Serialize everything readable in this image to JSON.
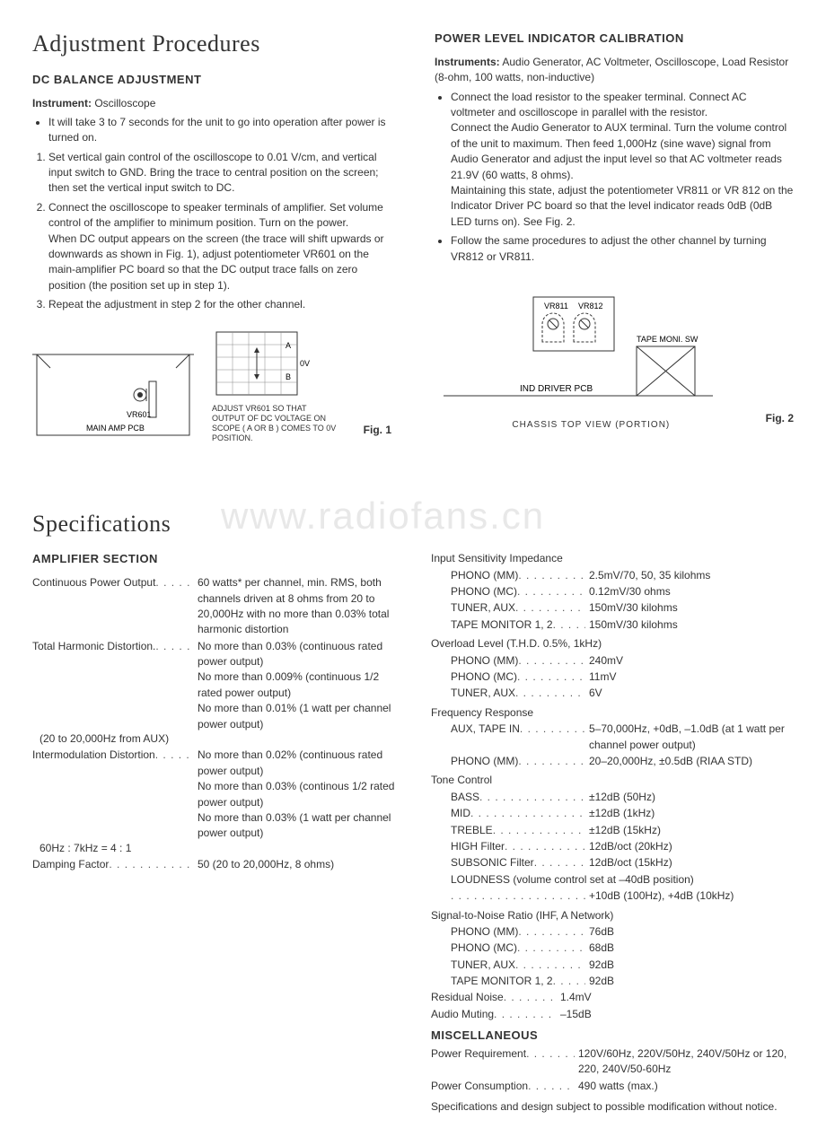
{
  "top": {
    "title": "Adjustment Procedures",
    "dc": {
      "heading": "DC BALANCE ADJUSTMENT",
      "instrument_label": "Instrument:",
      "instrument_value": "Oscilloscope",
      "bullet": "It will take 3 to 7 seconds for the unit to go into operation after power is turned on.",
      "steps": [
        "Set vertical gain control of the oscilloscope to 0.01 V/cm, and vertical input switch to GND. Bring the trace to central position on the screen; then set the vertical input switch to DC.",
        "Connect the oscilloscope to speaker terminals of amplifier. Set volume control of the amplifier to minimum position. Turn on the power.\nWhen DC output appears on the screen (the trace will shift upwards or downwards as shown in Fig. 1), adjust potentiometer VR601 on the main-amplifier PC board so that the DC output trace falls on zero position (the position set up in step 1).",
        "Repeat the adjustment in step 2 for the other channel."
      ]
    },
    "power": {
      "heading": "POWER LEVEL INDICATOR CALIBRATION",
      "instrument_label": "Instruments:",
      "instrument_value": "Audio Generator, AC Voltmeter, Oscilloscope, Load Resistor (8-ohm, 100 watts, non-inductive)",
      "bullets": [
        "Connect the load resistor to the speaker terminal. Connect AC voltmeter and oscilloscope in parallel with the resistor.\nConnect the Audio Generator to AUX terminal. Turn the volume control of the unit to maximum. Then feed 1,000Hz (sine wave) signal from Audio Generator and adjust the input level so that AC voltmeter reads 21.9V (60 watts, 8 ohms).\nMaintaining this state, adjust the potentiometer VR811 or VR 812 on the Indicator Driver PC board so that the level indicator reads 0dB (0dB LED turns on). See Fig. 2.",
        "Follow the same procedures to adjust the other channel by turning VR812 or VR811."
      ]
    },
    "fig1": {
      "box_label": "MAIN AMP PCB",
      "pot_label": "VR601",
      "zero_volt": "0V",
      "a": "A",
      "b": "B",
      "caption": "ADJUST VR601 SO THAT OUTPUT OF DC VOLTAGE ON SCOPE ( A OR B ) COMES TO 0V POSITION.",
      "label": "Fig. 1"
    },
    "fig2": {
      "vr811": "VR811",
      "vr812": "VR812",
      "tape": "TAPE MONI. SW",
      "pcb": "IND DRIVER PCB",
      "chassis": "CHASSIS  TOP VIEW   (PORTION)",
      "label": "Fig. 2"
    }
  },
  "watermark": "www.radiofans.cn",
  "specs": {
    "title": "Specifications",
    "amp_heading": "AMPLIFIER SECTION",
    "left": [
      {
        "label": "Continuous Power Output",
        "value": "60 watts* per channel, min. RMS, both channels driven at 8 ohms from 20 to 20,000Hz with no more than 0.03% total harmonic distortion"
      },
      {
        "label": "Total Harmonic Distortion.",
        "sublabel": "(20 to 20,000Hz from AUX)",
        "value": "No more than 0.03% (continuous rated power output)\nNo more than 0.009% (continuous 1/2 rated power output)\nNo more than 0.01% (1 watt per channel power output)"
      },
      {
        "label": "Intermodulation Distortion",
        "sublabel": "60Hz : 7kHz = 4 : 1",
        "value": "No more than 0.02% (continuous rated power output)\nNo more than 0.03% (continous 1/2 rated power output)\nNo more than 0.03% (1 watt per channel power output)"
      },
      {
        "label": "Damping Factor",
        "value": "50 (20 to 20,000Hz, 8 ohms)"
      }
    ],
    "right": {
      "input_heading": "Input Sensitivity Impedance",
      "input": [
        {
          "label": "PHONO (MM)",
          "value": "2.5mV/70, 50, 35 kilohms"
        },
        {
          "label": "PHONO (MC)",
          "value": "0.12mV/30 ohms"
        },
        {
          "label": "TUNER, AUX",
          "value": "150mV/30 kilohms"
        },
        {
          "label": "TAPE MONITOR 1, 2",
          "value": "150mV/30 kilohms"
        }
      ],
      "overload_heading": "Overload Level (T.H.D. 0.5%, 1kHz)",
      "overload": [
        {
          "label": "PHONO (MM)",
          "value": "240mV"
        },
        {
          "label": "PHONO (MC)",
          "value": "11mV"
        },
        {
          "label": "TUNER, AUX",
          "value": "6V"
        }
      ],
      "freq_heading": "Frequency Response",
      "freq": [
        {
          "label": "AUX, TAPE IN",
          "value": "5–70,000Hz, +0dB, –1.0dB (at 1 watt per channel power output)"
        },
        {
          "label": "PHONO (MM)",
          "value": "20–20,000Hz, ±0.5dB (RIAA STD)"
        }
      ],
      "tone_heading": "Tone Control",
      "tone": [
        {
          "label": "BASS",
          "value": "±12dB (50Hz)"
        },
        {
          "label": "MID",
          "value": "±12dB (1kHz)"
        },
        {
          "label": "TREBLE",
          "value": "±12dB (15kHz)"
        },
        {
          "label": "HIGH Filter",
          "value": "12dB/oct (20kHz)"
        },
        {
          "label": "SUBSONIC Filter",
          "value": "12dB/oct (15kHz)"
        },
        {
          "label": "LOUDNESS (volume control set at –40dB position)",
          "value": "+10dB (100Hz), +4dB (10kHz)",
          "full": true
        }
      ],
      "snr_heading": "Signal-to-Noise Ratio (IHF, A Network)",
      "snr": [
        {
          "label": "PHONO (MM)",
          "value": "76dB"
        },
        {
          "label": "PHONO (MC)",
          "value": "68dB"
        },
        {
          "label": "TUNER, AUX",
          "value": "92dB"
        },
        {
          "label": "TAPE MONITOR 1, 2",
          "value": "92dB"
        }
      ],
      "residual": {
        "label": "Residual Noise",
        "value": "1.4mV"
      },
      "muting": {
        "label": "Audio Muting",
        "value": "–15dB"
      },
      "misc_heading": "MISCELLANEOUS",
      "misc": [
        {
          "label": "Power Requirement",
          "value": "120V/60Hz, 220V/50Hz, 240V/50Hz or 120, 220, 240V/50-60Hz"
        },
        {
          "label": "Power Consumption",
          "value": "490 watts (max.)"
        }
      ],
      "disclaimer": "Specifications and design subject to possible modification without notice."
    }
  }
}
